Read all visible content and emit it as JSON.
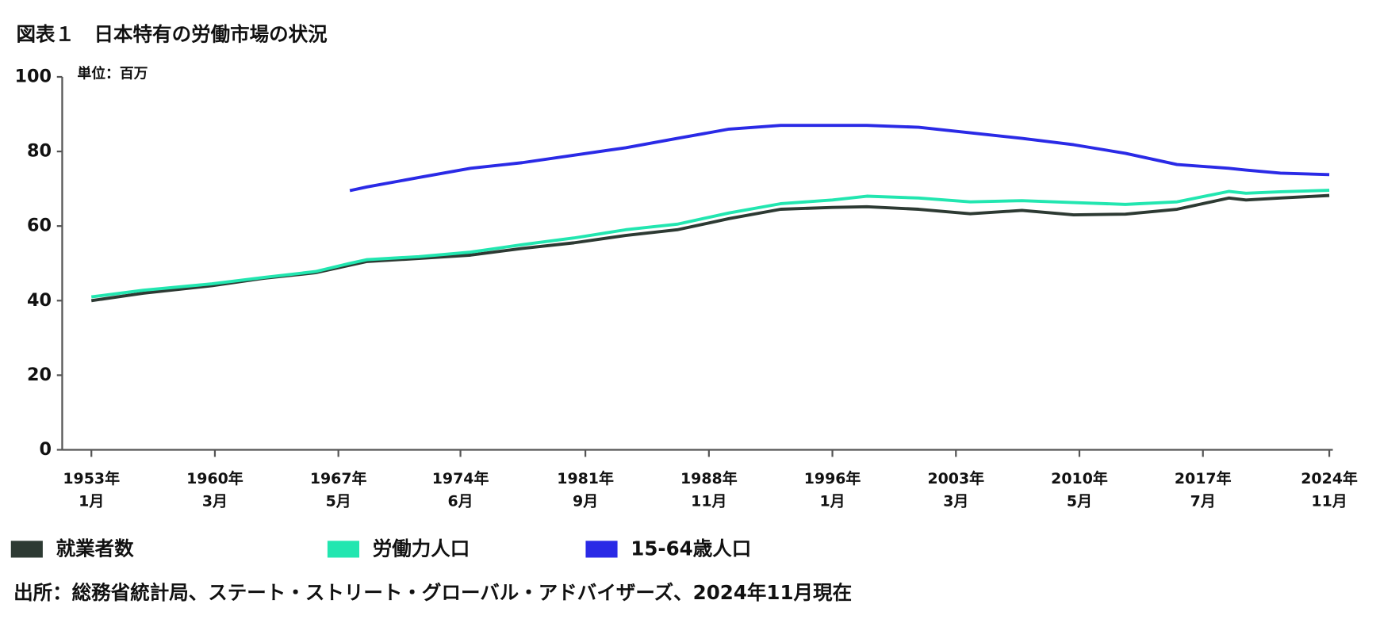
{
  "chart_data": {
    "type": "line",
    "title": "図表１　日本特有の労働市場の状況",
    "y_unit_label": "単位：百万",
    "source": "出所：総務省統計局、ステート・ストリート・グローバル・アドバイザーズ、2024年11月現在",
    "x": [
      "1953-01",
      "1956-01",
      "1960-01",
      "1963-01",
      "1966-01",
      "1968-01",
      "1969-01",
      "1972-01",
      "1975-01",
      "1978-01",
      "1981-01",
      "1984-01",
      "1987-01",
      "1990-01",
      "1993-01",
      "1996-01",
      "1998-01",
      "2001-01",
      "2004-01",
      "2007-01",
      "2010-01",
      "2013-01",
      "2016-01",
      "2019-01",
      "2020-01",
      "2022-01",
      "2024-11"
    ],
    "series": [
      {
        "name": "就業者数",
        "color": "#2d3a33",
        "values": [
          40,
          42,
          44,
          46,
          47.5,
          49.5,
          50.5,
          51.3,
          52.2,
          54,
          55.5,
          57.5,
          59,
          62,
          64.5,
          65,
          65.2,
          64.5,
          63.3,
          64.2,
          63,
          63.2,
          64.5,
          67.5,
          67,
          67.5,
          68.2
        ]
      },
      {
        "name": "労働力人口",
        "color": "#22e6b0",
        "values": [
          41,
          42.8,
          44.5,
          46.2,
          47.8,
          50,
          51,
          51.8,
          53,
          55,
          56.8,
          59,
          60.5,
          63.5,
          66,
          67,
          68,
          67.5,
          66.5,
          66.8,
          66.3,
          65.8,
          66.5,
          69.3,
          68.8,
          69.2,
          69.6
        ]
      },
      {
        "name": "15-64歳人口",
        "color": "#2a2ae6",
        "values": [
          null,
          null,
          null,
          null,
          null,
          69.5,
          70.5,
          73,
          75.5,
          77,
          79,
          81,
          83.5,
          86,
          87,
          87,
          87,
          86.5,
          85,
          83.5,
          81.8,
          79.5,
          76.5,
          75.5,
          75,
          74.2,
          73.8
        ]
      }
    ],
    "xlim": [
      "1953-01",
      "2024-11"
    ],
    "xticks": [
      {
        "value": "1953-01",
        "label": [
          "1953年",
          "1月"
        ]
      },
      {
        "value": "1960-03",
        "label": [
          "1960年",
          "3月"
        ]
      },
      {
        "value": "1967-05",
        "label": [
          "1967年",
          "5月"
        ]
      },
      {
        "value": "1974-06",
        "label": [
          "1974年",
          "6月"
        ]
      },
      {
        "value": "1981-09",
        "label": [
          "1981年",
          "9月"
        ]
      },
      {
        "value": "1988-11",
        "label": [
          "1988年",
          "11月"
        ]
      },
      {
        "value": "1996-01",
        "label": [
          "1996年",
          "1月"
        ]
      },
      {
        "value": "2003-03",
        "label": [
          "2003年",
          "3月"
        ]
      },
      {
        "value": "2010-05",
        "label": [
          "2010年",
          "5月"
        ]
      },
      {
        "value": "2017-07",
        "label": [
          "2017年",
          "7月"
        ]
      },
      {
        "value": "2024-11",
        "label": [
          "2024年",
          "11月"
        ]
      }
    ],
    "ylim": [
      0,
      100
    ],
    "yticks": [
      0,
      20,
      40,
      60,
      80,
      100
    ],
    "grid": false,
    "legend": "bottom"
  }
}
